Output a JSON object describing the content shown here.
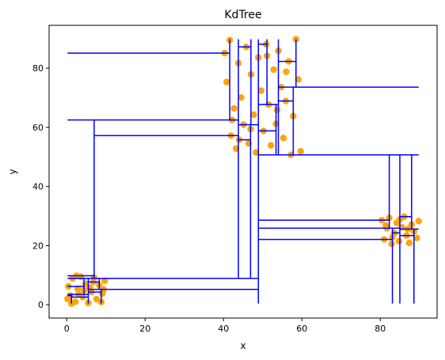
{
  "chart_data": {
    "type": "scatter",
    "title": "KdTree",
    "xlabel": "x",
    "ylabel": "y",
    "xlim": [
      -4.5,
      94.5
    ],
    "ylim": [
      -4.5,
      94.5
    ],
    "xticks": [
      0,
      20,
      40,
      60,
      80
    ],
    "yticks": [
      0,
      20,
      40,
      60,
      80
    ],
    "grid": false,
    "point_color": "#ffa500",
    "line_color": "#0000ff",
    "clusters": [
      {
        "x_range": [
          0,
          10
        ],
        "y_range": [
          0,
          10
        ],
        "points": [
          [
            0.4,
            6.2
          ],
          [
            0.9,
            3.1
          ],
          [
            1.5,
            8.9
          ],
          [
            2.2,
            1.0
          ],
          [
            2.8,
            5.4
          ],
          [
            3.6,
            9.5
          ],
          [
            4.1,
            2.6
          ],
          [
            4.8,
            7.1
          ],
          [
            5.5,
            0.6
          ],
          [
            6.3,
            4.3
          ],
          [
            7.0,
            9.2
          ],
          [
            7.6,
            1.9
          ],
          [
            8.3,
            6.6
          ],
          [
            9.1,
            3.8
          ],
          [
            9.7,
            8.1
          ],
          [
            1.2,
            0.4
          ],
          [
            5.9,
            5.8
          ],
          [
            8.8,
            0.9
          ],
          [
            3.0,
            3.5
          ],
          [
            6.8,
            7.7
          ],
          [
            9.4,
            5.2
          ],
          [
            2.5,
            9.8
          ],
          [
            0.2,
            2.0
          ],
          [
            4.4,
            4.9
          ]
        ]
      },
      {
        "x_range": [
          40,
          60
        ],
        "y_range": [
          50,
          90
        ],
        "points": [
          [
            40.3,
            85.1
          ],
          [
            40.8,
            75.3
          ],
          [
            41.6,
            89.5
          ],
          [
            41.9,
            57.2
          ],
          [
            42.7,
            66.4
          ],
          [
            43.2,
            52.8
          ],
          [
            43.8,
            81.7
          ],
          [
            44.5,
            70.1
          ],
          [
            45.1,
            60.9
          ],
          [
            45.8,
            87.2
          ],
          [
            46.4,
            54.6
          ],
          [
            47.0,
            77.9
          ],
          [
            47.7,
            64.3
          ],
          [
            48.3,
            51.5
          ],
          [
            48.9,
            83.6
          ],
          [
            49.6,
            72.4
          ],
          [
            50.2,
            58.8
          ],
          [
            50.9,
            88.1
          ],
          [
            51.5,
            67.7
          ],
          [
            52.1,
            53.9
          ],
          [
            52.8,
            79.5
          ],
          [
            53.4,
            61.2
          ],
          [
            54.0,
            85.9
          ],
          [
            54.7,
            73.6
          ],
          [
            55.3,
            56.4
          ],
          [
            55.9,
            68.9
          ],
          [
            56.6,
            82.3
          ],
          [
            57.2,
            50.7
          ],
          [
            57.8,
            63.8
          ],
          [
            58.5,
            89.8
          ],
          [
            59.1,
            76.2
          ],
          [
            59.7,
            51.9
          ],
          [
            42.2,
            62.5
          ],
          [
            46.9,
            59.4
          ],
          [
            51.1,
            84.2
          ],
          [
            53.7,
            65.9
          ],
          [
            56.0,
            78.8
          ],
          [
            44.0,
            55.8
          ]
        ]
      },
      {
        "x_range": [
          80,
          90
        ],
        "y_range": [
          20,
          30
        ],
        "points": [
          [
            80.4,
            28.6
          ],
          [
            81.0,
            22.1
          ],
          [
            81.7,
            25.9
          ],
          [
            82.3,
            29.4
          ],
          [
            82.9,
            20.6
          ],
          [
            83.6,
            24.3
          ],
          [
            84.2,
            27.7
          ],
          [
            84.8,
            21.5
          ],
          [
            85.5,
            26.2
          ],
          [
            86.1,
            29.8
          ],
          [
            86.7,
            23.4
          ],
          [
            87.4,
            20.9
          ],
          [
            88.0,
            27.1
          ],
          [
            88.6,
            24.8
          ],
          [
            89.3,
            22.6
          ],
          [
            89.8,
            28.3
          ],
          [
            83.1,
            22.9
          ],
          [
            87.0,
            25.6
          ],
          [
            85.0,
            28.9
          ],
          [
            81.4,
            26.8
          ]
        ]
      }
    ]
  }
}
